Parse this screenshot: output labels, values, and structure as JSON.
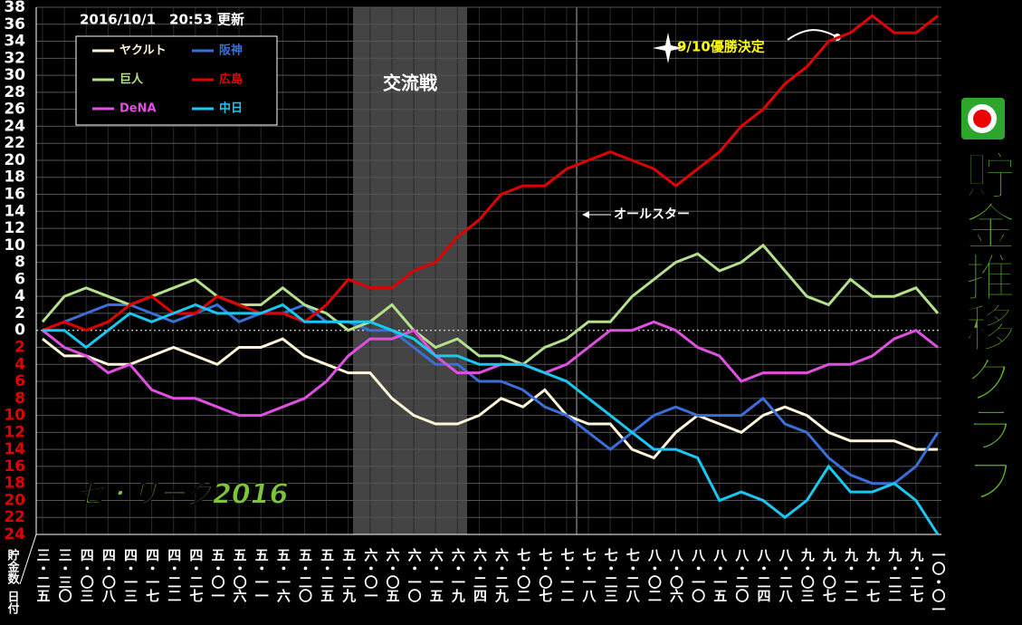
{
  "chart_data": {
    "type": "line",
    "title": "貯金推移グラフ",
    "subtitle": "2016/10/1　20:53 更新",
    "league_label": "セ・リーグ2016",
    "y_label": "貯金数",
    "x_label": "日付",
    "annotations": [
      "交流戦",
      "オールスター",
      "9/10優勝決定"
    ],
    "categories": [
      "三・二五",
      "三・三〇",
      "四・〇三",
      "四・〇八",
      "四・一三",
      "四・一七",
      "四・二二",
      "四・二七",
      "五・〇一",
      "五・〇六",
      "五・一一",
      "五・一六",
      "五・二〇",
      "五・二五",
      "五・二九",
      "六・〇一",
      "六・〇五",
      "六・一〇",
      "六・一五",
      "六・一九",
      "六・二四",
      "六・二九",
      "七・〇二",
      "七・〇七",
      "七・一二",
      "七・一八",
      "七・二三",
      "七・二八",
      "八・〇二",
      "八・〇六",
      "八・一〇",
      "八・一五",
      "八・二〇",
      "八・二四",
      "八・二八",
      "九・〇三",
      "九・〇七",
      "九・一二",
      "九・一七",
      "九・二二",
      "九・二七",
      "一〇・〇一"
    ],
    "series": [
      {
        "name": "ヤクルト",
        "color": "#fff6d8",
        "values": [
          -1,
          -3,
          -3,
          -4,
          -4,
          -3,
          -2,
          -3,
          -4,
          -2,
          -2,
          -1,
          -3,
          -4,
          -5,
          -5,
          -8,
          -10,
          -11,
          -11,
          -10,
          -8,
          -9,
          -7,
          -10,
          -11,
          -11,
          -14,
          -15,
          -12,
          -10,
          -11,
          -12,
          -10,
          -9,
          -10,
          -12,
          -13,
          -13,
          -13,
          -14,
          -14
        ]
      },
      {
        "name": "阪神",
        "color": "#3a6fd8",
        "values": [
          0,
          1,
          2,
          3,
          3,
          2,
          1,
          2,
          3,
          1,
          2,
          2,
          3,
          1,
          1,
          0,
          0,
          -2,
          -4,
          -4,
          -6,
          -6,
          -7,
          -9,
          -10,
          -12,
          -14,
          -12,
          -10,
          -9,
          -10,
          -10,
          -10,
          -8,
          -11,
          -12,
          -15,
          -17,
          -18,
          -18,
          -16,
          -12
        ]
      },
      {
        "name": "巨人",
        "color": "#b5e08a",
        "values": [
          1,
          4,
          5,
          4,
          3,
          4,
          5,
          6,
          4,
          3,
          3,
          5,
          3,
          2,
          0,
          1,
          3,
          0,
          -2,
          -1,
          -3,
          -3,
          -4,
          -2,
          -1,
          1,
          1,
          4,
          6,
          8,
          9,
          7,
          8,
          10,
          7,
          4,
          3,
          6,
          4,
          4,
          5,
          2
        ]
      },
      {
        "name": "広島",
        "color": "#e00000",
        "values": [
          0,
          1,
          0,
          1,
          3,
          4,
          2,
          2,
          4,
          3,
          2,
          2,
          1,
          3,
          6,
          5,
          5,
          7,
          8,
          11,
          13,
          16,
          17,
          17,
          19,
          20,
          21,
          20,
          19,
          17,
          19,
          21,
          24,
          26,
          29,
          31,
          34,
          35,
          37,
          35,
          35,
          37
        ]
      },
      {
        "name": "DeNA",
        "color": "#e050e0",
        "values": [
          0,
          -2,
          -3,
          -5,
          -4,
          -7,
          -8,
          -8,
          -9,
          -10,
          -10,
          -9,
          -8,
          -6,
          -3,
          -1,
          -1,
          0,
          -3,
          -5,
          -5,
          -4,
          -4,
          -5,
          -4,
          -2,
          0,
          0,
          1,
          0,
          -2,
          -3,
          -6,
          -5,
          -5,
          -5,
          -4,
          -4,
          -3,
          -1,
          0,
          -2
        ]
      },
      {
        "name": "中日",
        "color": "#18c8f0",
        "values": [
          0,
          0,
          -2,
          0,
          2,
          1,
          2,
          3,
          2,
          2,
          2,
          3,
          1,
          1,
          1,
          1,
          0,
          -1,
          -3,
          -3,
          -4,
          -4,
          -4,
          -5,
          -6,
          -8,
          -10,
          -12,
          -14,
          -14,
          -15,
          -20,
          -19,
          -20,
          -22,
          -20,
          -16,
          -19,
          -19,
          -18,
          -20,
          -24
        ]
      }
    ],
    "ylim": [
      -24,
      38
    ],
    "yticks": [
      38,
      36,
      34,
      32,
      30,
      28,
      26,
      24,
      22,
      20,
      18,
      16,
      14,
      12,
      10,
      8,
      6,
      4,
      2,
      0,
      {
        "value": -2,
        "label": "2"
      },
      {
        "value": -4,
        "label": "4"
      },
      {
        "value": -6,
        "label": "6"
      },
      {
        "value": -8,
        "label": "8"
      },
      {
        "value": -10,
        "label": "10"
      },
      {
        "value": -12,
        "label": "12"
      },
      {
        "value": -14,
        "label": "14"
      },
      {
        "value": -16,
        "label": "16"
      },
      {
        "value": -18,
        "label": "18"
      },
      {
        "value": -20,
        "label": "20"
      },
      {
        "value": -22,
        "label": "22"
      },
      {
        "value": -24,
        "label": "24"
      }
    ],
    "grid": true
  }
}
